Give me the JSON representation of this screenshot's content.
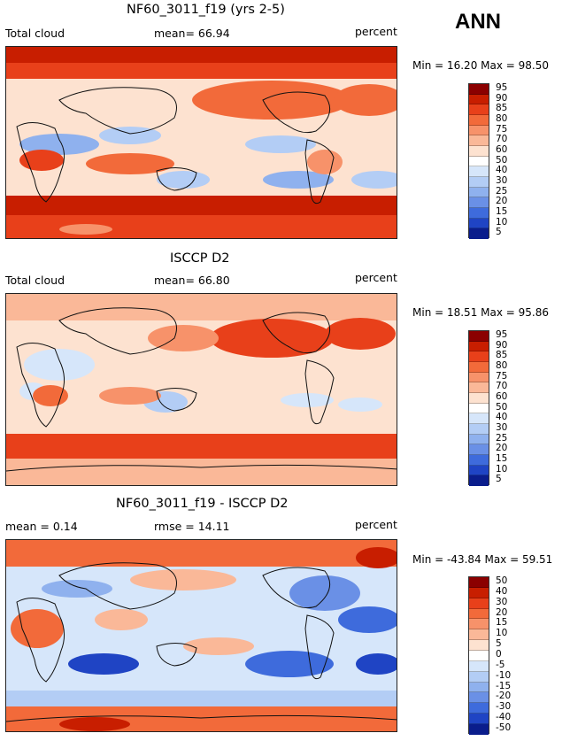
{
  "season": "ANN",
  "chart_data": [
    {
      "type": "heatmap",
      "title": "NF60_3011_f19 (yrs 2-5)",
      "left_label": "Total cloud",
      "center_label": "mean=   66.94",
      "units": "percent",
      "stats": "Min =   16.20  Max =   98.50",
      "min": 16.2,
      "max": 98.5,
      "mean": 66.94,
      "colorbar_levels": [
        "95",
        "90",
        "85",
        "80",
        "75",
        "70",
        "60",
        "50",
        "40",
        "30",
        "25",
        "20",
        "15",
        "10",
        "5"
      ],
      "colorbar_colors": [
        "#8b0000",
        "#c81e00",
        "#e8401a",
        "#f26a3a",
        "#f7926a",
        "#fab898",
        "#fde2d0",
        "#ffffff",
        "#d6e6fa",
        "#b3cdf5",
        "#8fb1ee",
        "#6a90e6",
        "#3e6bdc",
        "#1f44c4",
        "#0a1d8c"
      ]
    },
    {
      "type": "heatmap",
      "title": "ISCCP D2",
      "left_label": "Total cloud",
      "center_label": "mean=   66.80",
      "units": "percent",
      "stats": "Min =   18.51  Max =   95.86",
      "min": 18.51,
      "max": 95.86,
      "mean": 66.8,
      "colorbar_levels": [
        "95",
        "90",
        "85",
        "80",
        "75",
        "70",
        "60",
        "50",
        "40",
        "30",
        "25",
        "20",
        "15",
        "10",
        "5"
      ],
      "colorbar_colors": [
        "#8b0000",
        "#c81e00",
        "#e8401a",
        "#f26a3a",
        "#f7926a",
        "#fab898",
        "#fde2d0",
        "#ffffff",
        "#d6e6fa",
        "#b3cdf5",
        "#8fb1ee",
        "#6a90e6",
        "#3e6bdc",
        "#1f44c4",
        "#0a1d8c"
      ]
    },
    {
      "type": "heatmap",
      "title": "NF60_3011_f19 - ISCCP D2",
      "left_label": "mean =    0.14",
      "center_label": "rmse =   14.11",
      "units": "percent",
      "stats": "Min = -43.84  Max =   59.51",
      "min": -43.84,
      "max": 59.51,
      "mean": 0.14,
      "rmse": 14.11,
      "colorbar_levels": [
        "50",
        "40",
        "30",
        "20",
        "15",
        "10",
        "5",
        "0",
        "-5",
        "-10",
        "-15",
        "-20",
        "-30",
        "-40",
        "-50"
      ],
      "colorbar_colors": [
        "#8b0000",
        "#c81e00",
        "#e8401a",
        "#f26a3a",
        "#f7926a",
        "#fab898",
        "#fde2d0",
        "#ffffff",
        "#d6e6fa",
        "#b3cdf5",
        "#8fb1ee",
        "#6a90e6",
        "#3e6bdc",
        "#1f44c4",
        "#0a1d8c"
      ]
    }
  ]
}
